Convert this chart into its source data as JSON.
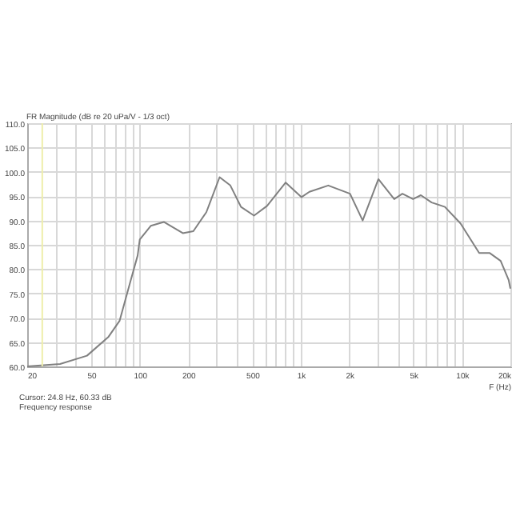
{
  "chart_data": {
    "type": "line",
    "ylabel": "FR Magnitude (dB re 20 uPa/V - 1/3 oct)",
    "xlabel": "F (Hz)",
    "annotations": [
      "Cursor: 24.8 Hz, 60.33 dB",
      "Frequency response"
    ],
    "log": "x",
    "grid": true,
    "xlim": [
      20,
      20000
    ],
    "ylim": [
      60,
      110
    ],
    "xticks": [
      20,
      {
        "value": 30,
        "label": null
      },
      {
        "value": 40,
        "label": null
      },
      50,
      {
        "value": 60,
        "label": null
      },
      {
        "value": 70,
        "label": null
      },
      {
        "value": 80,
        "label": null
      },
      {
        "value": 90,
        "label": null
      },
      100,
      200,
      {
        "value": 300,
        "label": null
      },
      {
        "value": 400,
        "label": null
      },
      500,
      {
        "value": 600,
        "label": null
      },
      {
        "value": 700,
        "label": null
      },
      {
        "value": 800,
        "label": null
      },
      {
        "value": 900,
        "label": null
      },
      {
        "value": 1000,
        "label": "1k"
      },
      {
        "value": 2000,
        "label": "2k"
      },
      {
        "value": 3000,
        "label": null
      },
      {
        "value": 4000,
        "label": null
      },
      {
        "value": 5000,
        "label": "5k"
      },
      {
        "value": 6000,
        "label": null
      },
      {
        "value": 7000,
        "label": null
      },
      {
        "value": 8000,
        "label": null
      },
      {
        "value": 9000,
        "label": null
      },
      {
        "value": 10000,
        "label": "10k"
      },
      {
        "value": 20000,
        "label": "20k"
      }
    ],
    "yticks": [
      {
        "value": 60,
        "label": "60.0"
      },
      {
        "value": 65,
        "label": "65.0"
      },
      {
        "value": 70,
        "label": "70.0"
      },
      {
        "value": 75,
        "label": "75.0"
      },
      {
        "value": 80,
        "label": "80.0"
      },
      {
        "value": 85,
        "label": "85.0"
      },
      {
        "value": 90,
        "label": "90.0"
      },
      {
        "value": 95,
        "label": "95.0"
      },
      {
        "value": 100,
        "label": "100.0"
      },
      {
        "value": 105,
        "label": "105.0"
      },
      {
        "value": 110,
        "label": "110.0"
      }
    ],
    "ref_lines": [
      {
        "axis": "x",
        "value": 24.8,
        "color": "#eeeeaa"
      }
    ],
    "x": [
      20,
      32,
      47,
      64,
      75,
      87,
      97,
      100,
      117,
      141,
      185,
      215,
      259,
      313,
      365,
      425,
      512,
      617,
      805,
      1010,
      1130,
      1480,
      2020,
      2420,
      3030,
      3800,
      4270,
      4970,
      5560,
      6490,
      7840,
      9800,
      12800,
      14900,
      17400,
      19500,
      20000
    ],
    "series": [
      {
        "color": "#808080",
        "values": [
          60,
          60.5,
          62.2,
          66.1,
          69.4,
          77.2,
          82.8,
          86.1,
          88.9,
          89.7,
          87.4,
          87.8,
          91.7,
          98.9,
          97.2,
          92.8,
          91,
          93,
          97.8,
          94.8,
          95.9,
          97.2,
          95.5,
          90,
          98.5,
          94.4,
          95.5,
          94.4,
          95.2,
          93.7,
          92.8,
          89.4,
          83.3,
          83.3,
          81.7,
          77.8,
          76
        ]
      }
    ]
  }
}
